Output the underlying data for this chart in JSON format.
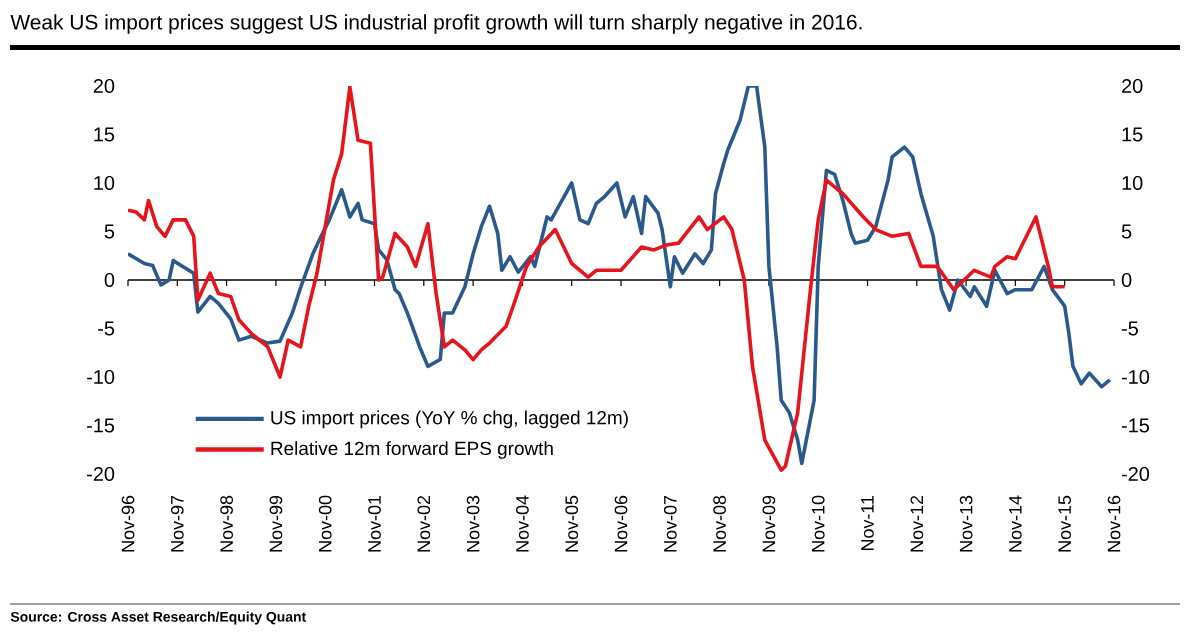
{
  "chart_data": {
    "type": "line",
    "title": "Weak US import prices suggest US industrial profit growth will turn sharply negative in 2016.",
    "annotations": [
      "Source: Cross Asset Research/Equity Quant"
    ],
    "xlim": [
      "1996-11",
      "2016-11"
    ],
    "xticks": [
      {
        "value": "1996-11",
        "label": "Nov-96"
      },
      {
        "value": "1997-11",
        "label": "Nov-97"
      },
      {
        "value": "1998-11",
        "label": "Nov-98"
      },
      {
        "value": "1999-11",
        "label": "Nov-99"
      },
      {
        "value": "2000-11",
        "label": "Nov-00"
      },
      {
        "value": "2001-11",
        "label": "Nov-01"
      },
      {
        "value": "2002-11",
        "label": "Nov-02"
      },
      {
        "value": "2003-11",
        "label": "Nov-03"
      },
      {
        "value": "2004-11",
        "label": "Nov-04"
      },
      {
        "value": "2005-11",
        "label": "Nov-05"
      },
      {
        "value": "2006-11",
        "label": "Nov-06"
      },
      {
        "value": "2007-11",
        "label": "Nov-07"
      },
      {
        "value": "2008-11",
        "label": "Nov-08"
      },
      {
        "value": "2009-11",
        "label": "Nov-09"
      },
      {
        "value": "2010-11",
        "label": "Nov-10"
      },
      {
        "value": "2011-11",
        "label": "Nov-11"
      },
      {
        "value": "2012-11",
        "label": "Nov-12"
      },
      {
        "value": "2013-11",
        "label": "Nov-13"
      },
      {
        "value": "2014-11",
        "label": "Nov-14"
      },
      {
        "value": "2015-11",
        "label": "Nov-15"
      },
      {
        "value": "2016-11",
        "label": "Nov-16"
      }
    ],
    "ylim": [
      -20,
      20
    ],
    "yticks": [
      -20,
      -15,
      -10,
      -5,
      0,
      5,
      10,
      15,
      20
    ],
    "y2lim": [
      -20,
      20
    ],
    "y2ticks": [
      -20,
      -15,
      -10,
      -5,
      0,
      5,
      10,
      15,
      20
    ],
    "legend": "bottom left",
    "series": [
      {
        "name": "US import prices (YoY % chg, lagged 12m)",
        "color": "#2a5a8c",
        "x": [
          "1996-11",
          "1997-03",
          "1997-05",
          "1997-07",
          "1997-09",
          "1997-10",
          "1998-03",
          "1998-04",
          "1998-07",
          "1998-09",
          "1998-12",
          "1999-02",
          "1999-05",
          "1999-09",
          "1999-12",
          "2000-03",
          "2000-05",
          "2000-08",
          "2000-10",
          "2000-12",
          "2001-03",
          "2001-04",
          "2001-05",
          "2001-07",
          "2001-08",
          "2001-11",
          "2001-12",
          "2002-02",
          "2002-04",
          "2002-05",
          "2002-07",
          "2002-10",
          "2002-12",
          "2003-03",
          "2003-04",
          "2003-06",
          "2003-09",
          "2003-11",
          "2004-01",
          "2004-03",
          "2004-05",
          "2004-06",
          "2004-08",
          "2004-10",
          "2005-01",
          "2005-02",
          "2005-05",
          "2005-06",
          "2005-11",
          "2006-01",
          "2006-03",
          "2006-05",
          "2006-07",
          "2006-10",
          "2006-12",
          "2007-02",
          "2007-04",
          "2007-05",
          "2007-08",
          "2007-09",
          "2007-11",
          "2007-12",
          "2008-02",
          "2008-05",
          "2008-07",
          "2008-09",
          "2008-10",
          "2008-12",
          "2009-01",
          "2009-04",
          "2009-06",
          "2009-08",
          "2009-10",
          "2009-11",
          "2010-01",
          "2010-02",
          "2010-04",
          "2010-06",
          "2010-07",
          "2010-10",
          "2010-11",
          "2011-01",
          "2011-03",
          "2011-05",
          "2011-07",
          "2011-08",
          "2011-11",
          "2012-01",
          "2012-04",
          "2012-05",
          "2012-08",
          "2012-10",
          "2012-12",
          "2013-03",
          "2013-05",
          "2013-07",
          "2013-09",
          "2013-12",
          "2014-01",
          "2014-04",
          "2014-06",
          "2014-09",
          "2014-11",
          "2015-03",
          "2015-06",
          "2015-08",
          "2015-11",
          "2015-12",
          "2016-01",
          "2016-03",
          "2016-05",
          "2016-08",
          "2016-10"
        ],
        "values": [
          2.7,
          1.7,
          1.5,
          -0.5,
          0,
          2,
          0.7,
          -3.3,
          -1.7,
          -2.4,
          -4,
          -6.2,
          -5.8,
          -6.5,
          -6.3,
          -3.4,
          -0.8,
          2.7,
          4.5,
          6.2,
          9.3,
          7.9,
          6.5,
          7.9,
          6.2,
          5.8,
          3.1,
          2.1,
          -1,
          -1.4,
          -3.4,
          -6.9,
          -8.9,
          -8.2,
          -3.4,
          -3.4,
          -0.7,
          2.7,
          5.5,
          7.6,
          4.8,
          1,
          2.4,
          0.8,
          2.4,
          1.4,
          6.5,
          6.2,
          10,
          6.2,
          5.8,
          7.9,
          8.6,
          10,
          6.5,
          8.6,
          4.8,
          8.6,
          6.9,
          5.2,
          -0.7,
          2.4,
          0.7,
          2.7,
          1.7,
          3.1,
          8.9,
          12,
          13.4,
          16.5,
          20,
          20,
          13.7,
          1.4,
          -6.9,
          -12.4,
          -13.7,
          -16.5,
          -18.9,
          -12.4,
          1.4,
          11.3,
          10.9,
          8.2,
          4.8,
          3.8,
          4.1,
          5.5,
          10.3,
          12.7,
          13.7,
          12.7,
          8.9,
          4.5,
          -1,
          -3.1,
          0,
          -1.7,
          -0.7,
          -2.7,
          1,
          -1.4,
          -1,
          -1,
          1.4,
          -1,
          -2.7,
          -5.5,
          -8.9,
          -10.7,
          -9.6,
          -11,
          -10.3
        ]
      },
      {
        "name": "Relative 12m forward EPS growth",
        "color": "#e8141c",
        "x": [
          "1996-11",
          "1997-01",
          "1997-03",
          "1997-04",
          "1997-06",
          "1997-08",
          "1997-10",
          "1998-01",
          "1998-03",
          "1998-04",
          "1998-07",
          "1998-09",
          "1998-12",
          "1999-02",
          "1999-05",
          "1999-09",
          "1999-12",
          "2000-02",
          "2000-05",
          "2000-07",
          "2000-09",
          "2000-11",
          "2001-01",
          "2001-03",
          "2001-05",
          "2001-07",
          "2001-10",
          "2001-12",
          "2002-01",
          "2002-04",
          "2002-07",
          "2002-09",
          "2002-12",
          "2003-02",
          "2003-04",
          "2003-06",
          "2003-09",
          "2003-11",
          "2004-01",
          "2004-03",
          "2004-06",
          "2004-07",
          "2004-09",
          "2004-12",
          "2005-03",
          "2005-07",
          "2005-11",
          "2006-03",
          "2006-05",
          "2006-07",
          "2006-11",
          "2007-04",
          "2007-07",
          "2007-10",
          "2008-01",
          "2008-06",
          "2008-08",
          "2008-12",
          "2009-02",
          "2009-05",
          "2009-07",
          "2009-10",
          "2010-02",
          "2010-03",
          "2010-06",
          "2010-09",
          "2010-11",
          "2011-01",
          "2011-05",
          "2011-10",
          "2012-01",
          "2012-05",
          "2012-09",
          "2012-12",
          "2013-04",
          "2013-08",
          "2014-01",
          "2014-05",
          "2014-06",
          "2014-09",
          "2014-11",
          "2015-04",
          "2015-07",
          "2015-08",
          "2015-11"
        ],
        "values": [
          7.2,
          7,
          6.2,
          8.2,
          5.5,
          4.5,
          6.2,
          6.2,
          4.5,
          -2.1,
          0.7,
          -1.4,
          -1.7,
          -4.1,
          -5.5,
          -6.9,
          -10,
          -6.2,
          -6.9,
          -2.7,
          0.7,
          5.5,
          10.3,
          13,
          19.9,
          14.4,
          14.1,
          0,
          0.3,
          4.8,
          3.4,
          1.4,
          5.8,
          -1.4,
          -6.9,
          -6.2,
          -7.2,
          -8.2,
          -7.2,
          -6.5,
          -5.2,
          -4.8,
          -2.4,
          1.4,
          3.4,
          5.2,
          1.7,
          0.3,
          1,
          1,
          1,
          3.4,
          3.1,
          3.6,
          3.8,
          6.5,
          5.2,
          6.5,
          5.2,
          0,
          -8.9,
          -16.5,
          -19.6,
          -19.2,
          -13.7,
          -1.4,
          6.2,
          10.3,
          8.9,
          6.5,
          5.2,
          4.5,
          4.8,
          1.4,
          1.4,
          -1,
          1,
          0.3,
          1.4,
          2.4,
          2.2,
          6.5,
          1.4,
          -0.7,
          -0.7
        ]
      }
    ]
  }
}
